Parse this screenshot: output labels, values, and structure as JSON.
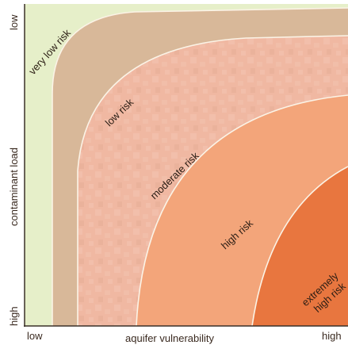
{
  "axes": {
    "x_label": "aquifer vulnerability",
    "x_low": "low",
    "x_high": "high",
    "y_label": "contaminant load",
    "y_low": "low",
    "y_high": "high"
  },
  "zones": [
    {
      "key": "very-low",
      "label": "very low risk",
      "color": "#e6efc9"
    },
    {
      "key": "low",
      "label": "low risk",
      "color": "#d8b899"
    },
    {
      "key": "moderate",
      "label": "moderate risk",
      "color": "#f0b8a2"
    },
    {
      "key": "high",
      "label": "high risk",
      "color": "#f3a57a"
    },
    {
      "key": "extremely-high",
      "label": "extremely high risk",
      "label_lines": [
        "extremely",
        "high risk"
      ],
      "color": "#e8763f"
    }
  ],
  "colors": {
    "axis": "#3a3028",
    "boundary": "#fbf3e6"
  }
}
